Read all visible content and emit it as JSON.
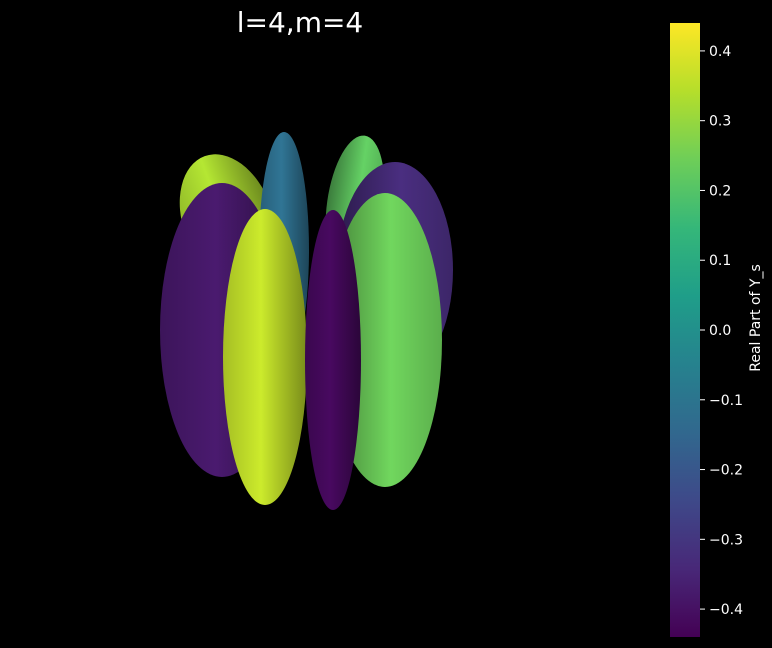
{
  "chart_data": {
    "type": "surface3d",
    "title": "l=4,m=4",
    "function": "Real Part of Y_s",
    "l": 4,
    "m": 4,
    "axes_visible": false,
    "grid": false,
    "colormap": "viridis",
    "colors": {
      "background": "#000000",
      "text": "#ffffff",
      "viridis_stops": [
        "#440154",
        "#482878",
        "#3e4989",
        "#31688e",
        "#26828e",
        "#1f9e89",
        "#35b779",
        "#6ece58",
        "#b5de2b",
        "#fde725"
      ]
    },
    "colorbar": {
      "label": "Real Part of Y_s",
      "range": [
        -0.44,
        0.44
      ],
      "ticks": [
        0.4,
        0.3,
        0.2,
        0.1,
        0.0,
        -0.1,
        -0.2,
        -0.3,
        -0.4
      ],
      "tick_labels": [
        "0.4",
        "0.3",
        "0.2",
        "0.1",
        "0.0",
        "−0.1",
        "−0.2",
        "−0.3",
        "−0.4"
      ],
      "position": "right"
    },
    "lobes": [
      {
        "order": 1,
        "value": 0.33
      },
      {
        "order": 2,
        "value": 0.22
      },
      {
        "order": 3,
        "value": -0.12
      },
      {
        "order": 4,
        "value": -0.33
      },
      {
        "order": 5,
        "value": -0.38
      },
      {
        "order": 6,
        "value": 0.24
      },
      {
        "order": 7,
        "value": 0.36
      },
      {
        "order": 8,
        "value": -0.42
      }
    ]
  }
}
